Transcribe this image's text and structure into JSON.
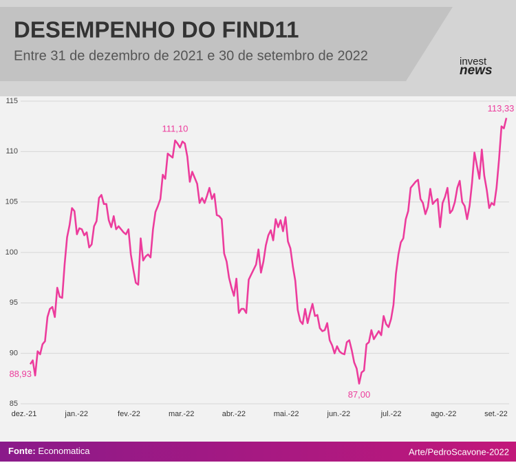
{
  "header": {
    "title": "DESEMPENHO DO FIND11",
    "subtitle": "Entre 31 de dezembro de 2021 e 30 de setembro de 2022",
    "logo": [
      "invest",
      "news"
    ]
  },
  "chart_data": {
    "type": "line",
    "x_labels": [
      "dez.-21",
      "jan.-22",
      "fev.-22",
      "mar.-22",
      "abr.-22",
      "mai.-22",
      "jun.-22",
      "jul.-22",
      "ago.-22",
      "set.-22"
    ],
    "series": [
      {
        "name": "FIND11",
        "color": "#ec3c9c",
        "values": [
          88.93,
          89.3,
          87.8,
          90.2,
          89.9,
          90.9,
          91.2,
          93.6,
          94.4,
          94.6,
          93.6,
          96.5,
          95.6,
          95.5,
          98.8,
          101.5,
          102.7,
          104.4,
          104.1,
          101.8,
          102.4,
          102.3,
          101.7,
          102.0,
          100.5,
          100.8,
          102.6,
          103.1,
          105.4,
          105.7,
          104.8,
          104.8,
          103.2,
          102.5,
          103.6,
          102.3,
          102.6,
          102.3,
          102.0,
          101.8,
          102.3,
          99.8,
          98.3,
          97.0,
          96.8,
          101.4,
          99.2,
          99.6,
          99.8,
          99.5,
          102.3,
          104.0,
          104.6,
          105.3,
          107.7,
          107.3,
          109.8,
          109.6,
          109.4,
          111.1,
          110.8,
          110.4,
          111.0,
          110.8,
          109.5,
          107.0,
          108.0,
          107.4,
          106.8,
          104.9,
          105.4,
          104.9,
          105.6,
          106.4,
          105.3,
          105.8,
          103.7,
          103.6,
          103.3,
          99.9,
          99.1,
          97.5,
          96.5,
          95.7,
          97.4,
          94.0,
          94.4,
          94.4,
          94.0,
          97.3,
          97.8,
          98.3,
          98.8,
          100.3,
          98.0,
          99.1,
          100.7,
          101.7,
          102.2,
          101.2,
          103.3,
          102.5,
          103.2,
          102.1,
          103.5,
          101.1,
          100.4,
          98.6,
          97.2,
          94.3,
          93.2,
          92.9,
          94.4,
          93.0,
          94.0,
          94.9,
          93.7,
          93.8,
          92.5,
          92.2,
          92.3,
          93.0,
          91.3,
          90.8,
          90.0,
          90.7,
          90.2,
          90.0,
          89.9,
          91.1,
          91.3,
          90.3,
          89.1,
          88.5,
          87.0,
          88.1,
          88.3,
          90.9,
          91.1,
          92.3,
          91.4,
          91.8,
          92.2,
          91.8,
          93.7,
          92.9,
          92.6,
          93.4,
          94.8,
          97.9,
          99.8,
          101.0,
          101.4,
          103.3,
          104.1,
          106.4,
          106.7,
          107.0,
          107.2,
          105.3,
          104.9,
          103.8,
          104.5,
          106.3,
          104.8,
          105.1,
          105.3,
          102.5,
          104.9,
          105.5,
          106.4,
          103.9,
          104.2,
          105.0,
          106.4,
          107.1,
          105.0,
          104.6,
          103.3,
          104.6,
          106.9,
          109.9,
          108.6,
          107.3,
          110.2,
          107.6,
          106.2,
          104.4,
          104.9,
          104.7,
          106.4,
          109.2,
          112.5,
          112.3,
          113.33
        ],
        "value_labels": [
          "88,93",
          null,
          null,
          null,
          null,
          null,
          null,
          null,
          null,
          null,
          null,
          null,
          null,
          null,
          null,
          null,
          null,
          null,
          null,
          null,
          null,
          null,
          null,
          null,
          null,
          null,
          null,
          null,
          null,
          null,
          null,
          null,
          null,
          null,
          null,
          null,
          null,
          null,
          null,
          null,
          null,
          null,
          null,
          null,
          null,
          null,
          null,
          null,
          null,
          null,
          null,
          null,
          null,
          null,
          null,
          null,
          null,
          null,
          null,
          "111,10",
          null,
          null,
          null,
          null,
          null,
          null,
          null,
          null,
          null,
          null,
          null,
          null,
          null,
          null,
          null,
          null,
          null,
          null,
          null,
          null,
          null,
          null,
          null,
          null,
          null,
          null,
          null,
          null,
          null,
          null,
          null,
          null,
          null,
          null,
          null,
          null,
          null,
          null,
          null,
          null,
          null,
          null,
          null,
          null,
          null,
          null,
          null,
          null,
          null,
          null,
          null,
          null,
          null,
          null,
          null,
          null,
          null,
          null,
          null,
          null,
          null,
          null,
          null,
          null,
          null,
          null,
          null,
          null,
          null,
          null,
          null,
          null,
          null,
          null,
          "87,00",
          null,
          null,
          null,
          null,
          null,
          null,
          null,
          null,
          null,
          null,
          null,
          null,
          null,
          null,
          null,
          null,
          null,
          null,
          null,
          null,
          null,
          null,
          null,
          null,
          null,
          null,
          null,
          null,
          null,
          null,
          null,
          null,
          null,
          null,
          null,
          null,
          null,
          null,
          null,
          null,
          null,
          null,
          null,
          null,
          null,
          null,
          null,
          null,
          null,
          null,
          null,
          null,
          null,
          null,
          null,
          null,
          null,
          null,
          null,
          "113,33"
        ]
      }
    ],
    "ylim": [
      85,
      115
    ],
    "yticks": [
      85,
      90,
      95,
      100,
      105,
      110,
      115
    ],
    "grid": true
  },
  "footer": {
    "source_label": "Fonte:",
    "source": "Economatica",
    "credit": "Arte/PedroScavone-2022"
  }
}
